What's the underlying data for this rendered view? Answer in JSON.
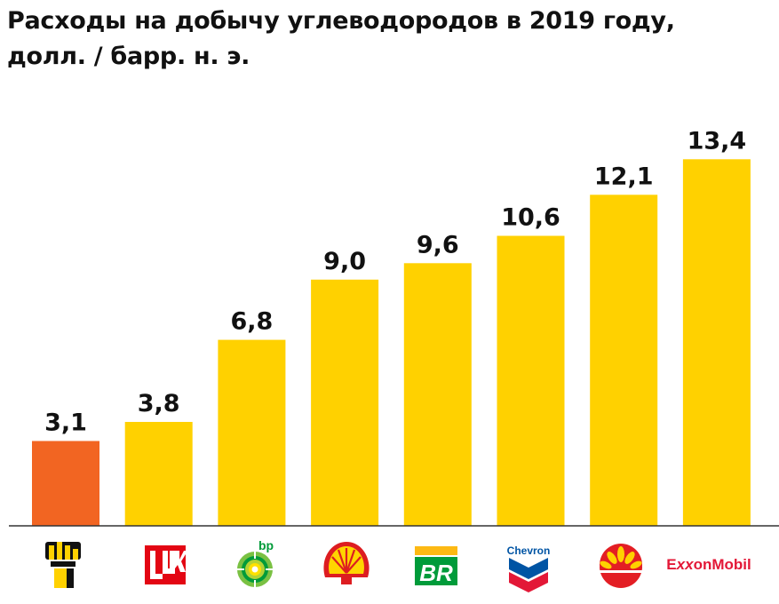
{
  "chart_data": {
    "type": "bar",
    "title": "Расходы на добычу углеводородов в 2019 году,",
    "subtitle": "долл. / барр. н. э.",
    "ylim": [
      0,
      14.5
    ],
    "grid": false,
    "legend": "none",
    "values": [
      3.1,
      3.8,
      6.8,
      9.0,
      9.6,
      10.6,
      12.1,
      13.4
    ],
    "value_labels": [
      "3,1",
      "3,8",
      "6,8",
      "9,0",
      "9,6",
      "10,6",
      "12,1",
      "13,4"
    ],
    "bar_colors": [
      "#F26522",
      "#FFD100",
      "#FFD100",
      "#FFD100",
      "#FFD100",
      "#FFD100",
      "#FFD100",
      "#FFD100"
    ],
    "categories": [
      {
        "logo": "rosneft-logo-icon"
      },
      {
        "logo": "lukoil-logo-icon"
      },
      {
        "logo": "bp-logo-icon"
      },
      {
        "logo": "shell-logo-icon"
      },
      {
        "logo": "petrobras-logo-icon"
      },
      {
        "logo": "chevron-logo-icon"
      },
      {
        "logo": "cnpc-logo-icon"
      },
      {
        "logo": "exxonmobil-logo-icon"
      }
    ],
    "logo_text": {
      "bp": "bp",
      "petrobras": "BR",
      "chevron": "Chevron",
      "exxon_a": "E",
      "exxon_xx": "xx",
      "exxon_b": "onMobil"
    }
  }
}
